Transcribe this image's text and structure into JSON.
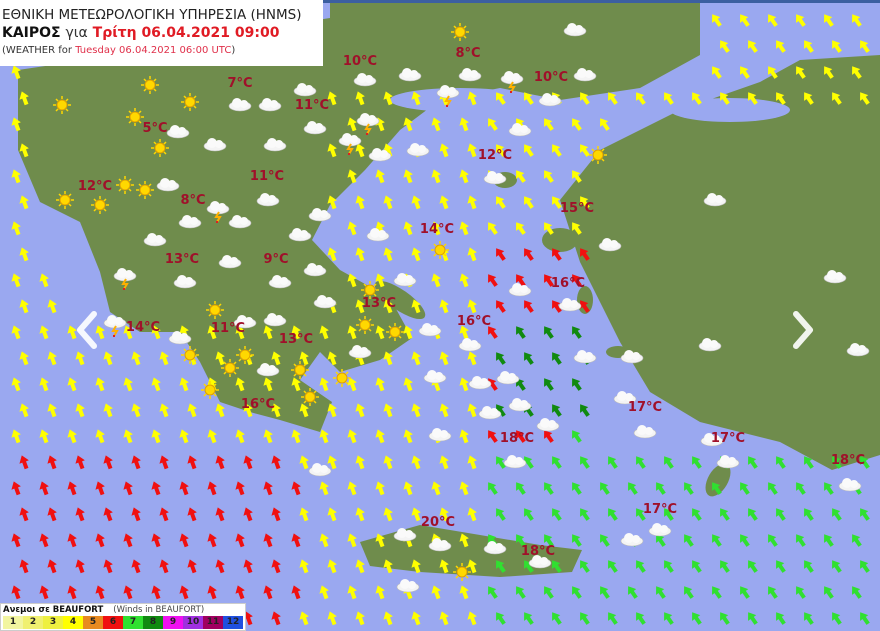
{
  "header": {
    "agency": "ΕΘΝΙΚΗ ΜΕΤΕΩΡΟΛΟΓΙΚΗ ΥΠΗΡΕΣΙΑ (HNMS)",
    "weather_gr": "ΚΑΙΡΟΣ",
    "for_gr": "για",
    "datetime_gr": "Τρίτη 06.04.2021 09:00",
    "weather_en": "(WEATHER for",
    "datetime_en": "Tuesday 06.04.2021 06:00 UTC",
    "close_paren": ")"
  },
  "legend": {
    "title_gr": "Ανεμοι σε BEAUFORT",
    "title_en": "(Winds in BEAUFORT)",
    "scale": [
      {
        "label": "1",
        "color": "#f2f5a0"
      },
      {
        "label": "2",
        "color": "#f0f070"
      },
      {
        "label": "3",
        "color": "#eef040"
      },
      {
        "label": "4",
        "color": "#ffff00"
      },
      {
        "label": "5",
        "color": "#e88a20"
      },
      {
        "label": "6",
        "color": "#f01010"
      },
      {
        "label": "7",
        "color": "#30e030"
      },
      {
        "label": "8",
        "color": "#108a10"
      },
      {
        "label": "9",
        "color": "#f010f0"
      },
      {
        "label": "10",
        "color": "#a030e0"
      },
      {
        "label": "11",
        "color": "#a00060"
      },
      {
        "label": "12",
        "color": "#2050e0"
      }
    ]
  },
  "temperatures": [
    "8°C",
    "10°C",
    "10°C",
    "7°C",
    "11°C",
    "5°C",
    "12°C",
    "11°C",
    "12°C",
    "8°C",
    "15°C",
    "14°C",
    "13°C",
    "9°C",
    "16°C",
    "13°C",
    "16°C",
    "14°C",
    "11°C",
    "13°C",
    "17°C",
    "16°C",
    "18°C",
    "17°C",
    "18°C",
    "17°C",
    "20°C",
    "18°C"
  ],
  "colors": {
    "sea": "#9aa8f0",
    "land": "#6f8c4c",
    "temperature": "#a0102a"
  },
  "nav": {
    "prev": "chevron-left-icon",
    "next": "chevron-right-icon"
  }
}
